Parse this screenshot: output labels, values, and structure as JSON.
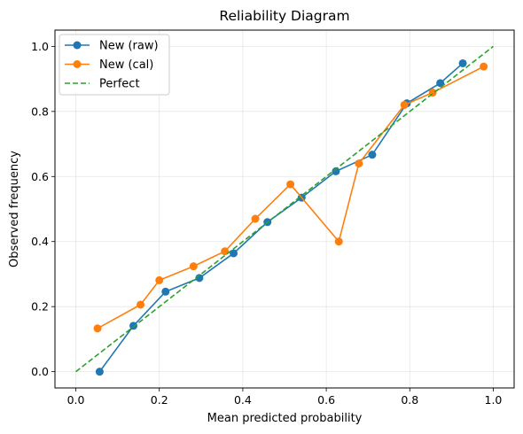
{
  "chart_data": {
    "type": "line",
    "title": "Reliability Diagram",
    "xlabel": "Mean predicted probability",
    "ylabel": "Observed frequency",
    "xlim": [
      -0.05,
      1.05
    ],
    "ylim": [
      -0.05,
      1.05
    ],
    "xticks": [
      0.0,
      0.2,
      0.4,
      0.6,
      0.8,
      1.0
    ],
    "yticks": [
      0.0,
      0.2,
      0.4,
      0.6,
      0.8,
      1.0
    ],
    "xtick_labels": [
      "0.0",
      "0.2",
      "0.4",
      "0.6",
      "0.8",
      "1.0"
    ],
    "ytick_labels": [
      "0.0",
      "0.2",
      "0.4",
      "0.6",
      "0.8",
      "1.0"
    ],
    "grid": true,
    "legend_position": "upper-left",
    "series": [
      {
        "name": "New (raw)",
        "color": "#1f77b4",
        "style": "solid-markers",
        "x": [
          0.057,
          0.138,
          0.215,
          0.296,
          0.378,
          0.459,
          0.541,
          0.623,
          0.71,
          0.793,
          0.873,
          0.927
        ],
        "y": [
          0.0,
          0.141,
          0.246,
          0.288,
          0.364,
          0.46,
          0.535,
          0.616,
          0.667,
          0.825,
          0.887,
          0.948
        ]
      },
      {
        "name": "New (cal)",
        "color": "#ff7f0e",
        "style": "solid-markers",
        "x": [
          0.052,
          0.155,
          0.2,
          0.282,
          0.357,
          0.43,
          0.514,
          0.63,
          0.678,
          0.787,
          0.855,
          0.977
        ],
        "y": [
          0.133,
          0.206,
          0.281,
          0.324,
          0.37,
          0.47,
          0.576,
          0.4,
          0.64,
          0.82,
          0.858,
          0.938
        ]
      },
      {
        "name": "Perfect",
        "color": "#2ca02c",
        "style": "dashed",
        "x": [
          0.0,
          1.0
        ],
        "y": [
          0.0,
          1.0
        ]
      }
    ]
  }
}
